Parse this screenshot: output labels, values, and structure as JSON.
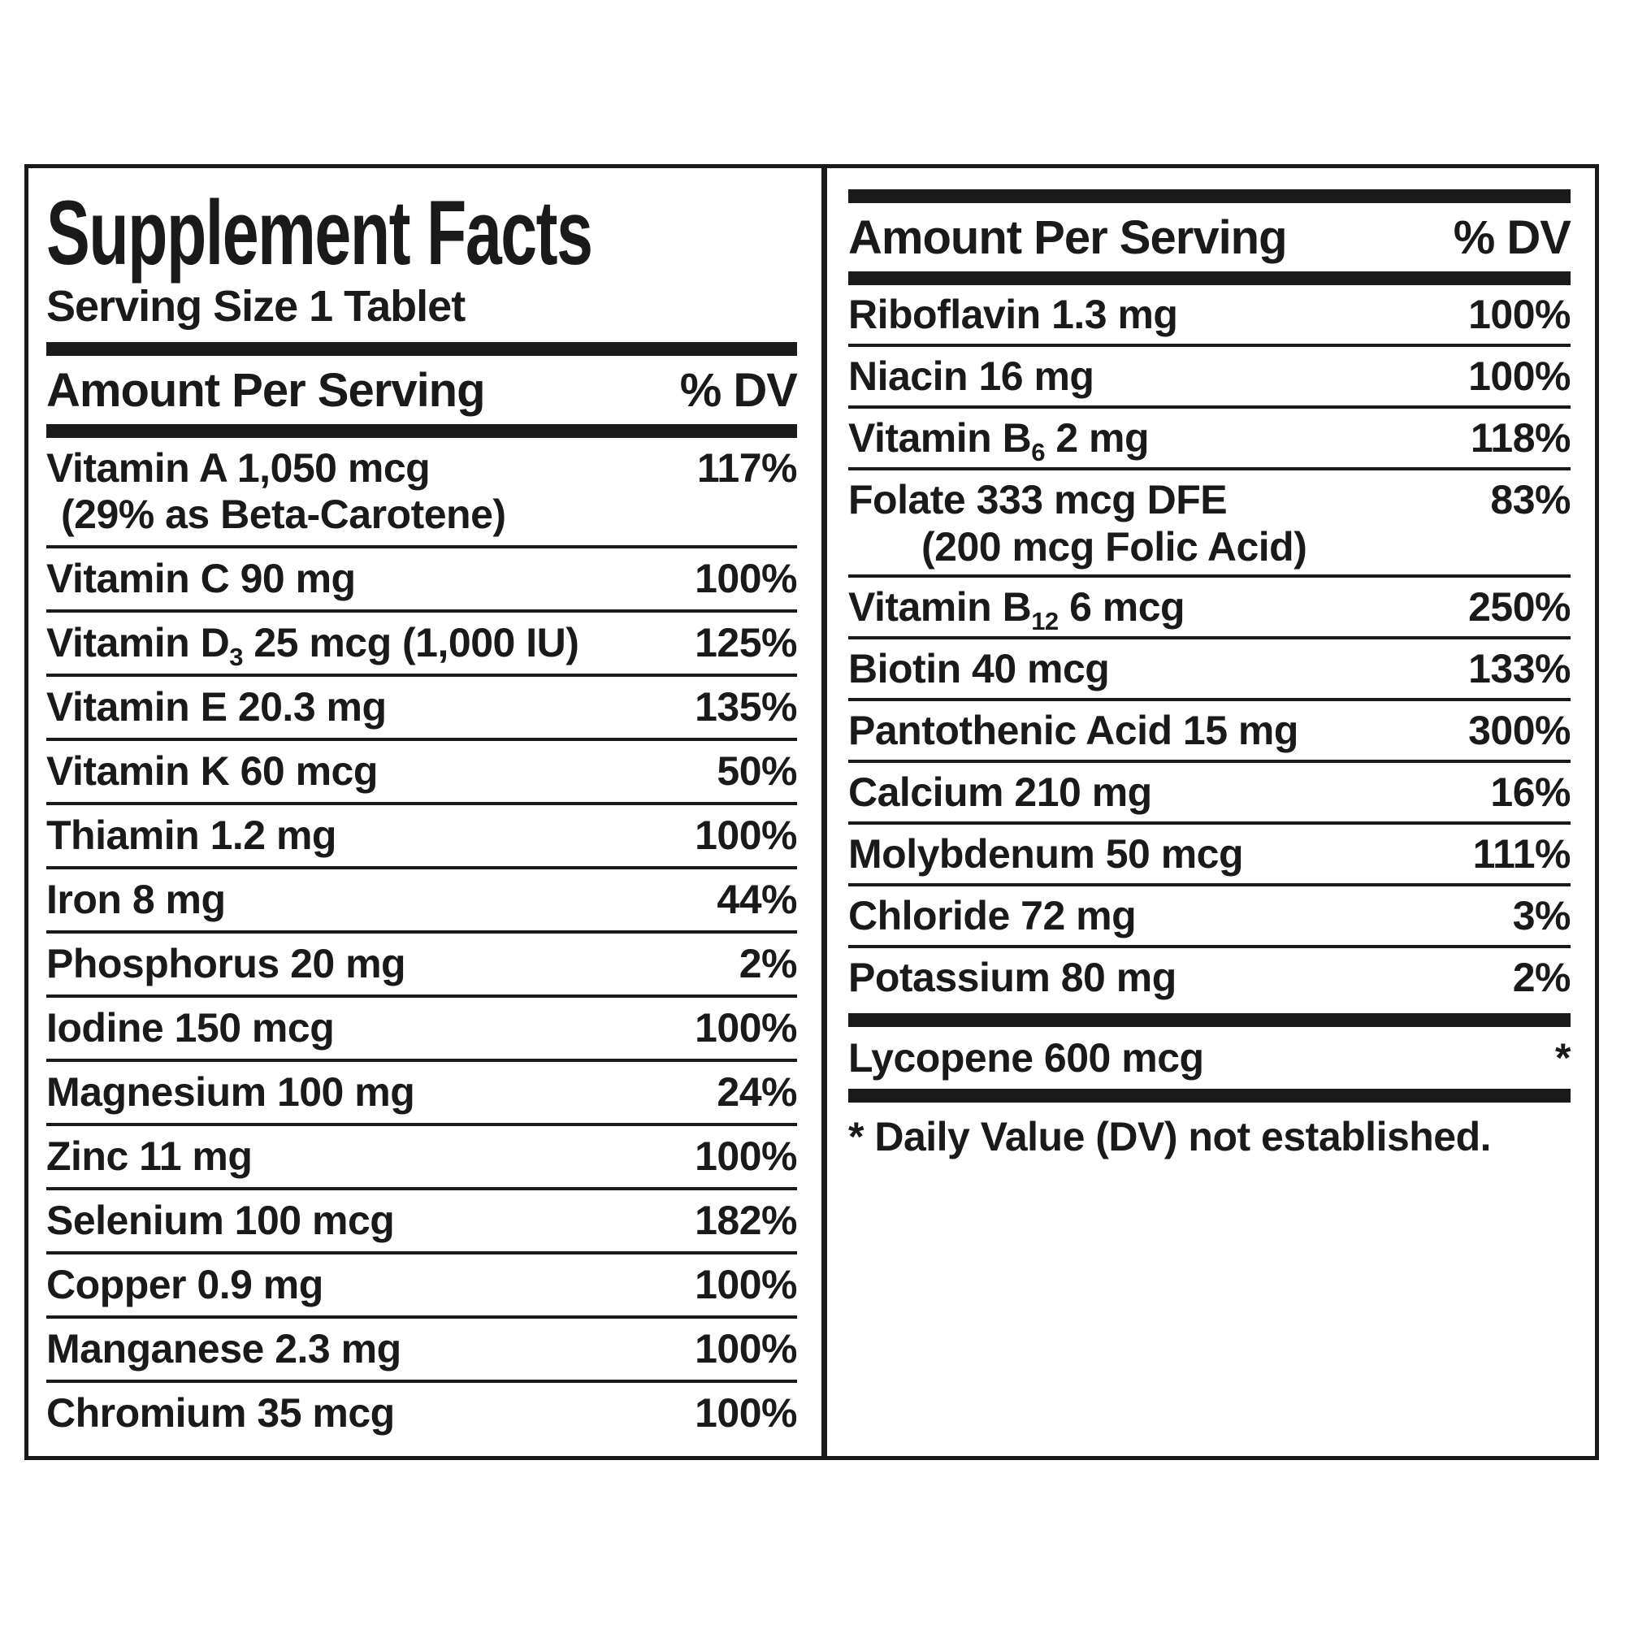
{
  "document": {
    "title": "Supplement Facts",
    "serving_size": "Serving Size 1 Tablet",
    "footnote": "* Daily Value (DV) not established."
  },
  "header": {
    "amount": "Amount Per Serving",
    "dv": "% DV"
  },
  "left_column": {
    "rows": [
      {
        "name": "Vitamin A 1,050 mcg",
        "note": "(29% as Beta-Carotene)",
        "dv": "117%"
      },
      {
        "name": "Vitamin C 90 mg",
        "dv": "100%"
      },
      {
        "pre": "Vitamin D",
        "sub": "3",
        "post": " 25 mcg (1,000 IU)",
        "dv": "125%"
      },
      {
        "name": "Vitamin E 20.3 mg",
        "dv": "135%"
      },
      {
        "name": "Vitamin K 60 mcg",
        "dv": "50%"
      },
      {
        "name": "Thiamin 1.2 mg",
        "dv": "100%"
      },
      {
        "name": "Iron 8 mg",
        "dv": "44%"
      },
      {
        "name": "Phosphorus 20 mg",
        "dv": "2%"
      },
      {
        "name": "Iodine 150 mcg",
        "dv": "100%"
      },
      {
        "name": "Magnesium 100 mg",
        "dv": "24%"
      },
      {
        "name": "Zinc 11 mg",
        "dv": "100%"
      },
      {
        "name": "Selenium 100 mcg",
        "dv": "182%"
      },
      {
        "name": "Copper 0.9 mg",
        "dv": "100%"
      },
      {
        "name": "Manganese 2.3 mg",
        "dv": "100%"
      },
      {
        "name": "Chromium 35 mcg",
        "dv": "100%"
      }
    ]
  },
  "right_column": {
    "rows": [
      {
        "name": "Riboflavin 1.3 mg",
        "dv": "100%"
      },
      {
        "name": "Niacin 16 mg",
        "dv": "100%"
      },
      {
        "pre": "Vitamin B",
        "sub": "6",
        "post": " 2 mg",
        "dv": "118%"
      },
      {
        "name": "Folate 333 mcg DFE",
        "note": "(200 mcg Folic Acid)",
        "dv": "83%"
      },
      {
        "pre": "Vitamin B",
        "sub": "12",
        "post": " 6 mcg",
        "dv": "250%"
      },
      {
        "name": "Biotin 40 mcg",
        "dv": "133%"
      },
      {
        "name": "Pantothenic Acid 15 mg",
        "dv": "300%"
      },
      {
        "name": "Calcium 210 mg",
        "dv": "16%"
      },
      {
        "name": "Molybdenum 50 mcg",
        "dv": "111%"
      },
      {
        "name": "Chloride 72 mg",
        "dv": "3%"
      },
      {
        "name": "Potassium 80 mg",
        "dv": "2%"
      }
    ],
    "extra_row": {
      "name": "Lycopene 600 mcg",
      "dv": "*"
    }
  },
  "colors": {
    "ink": "#1a1a1a",
    "background": "#ffffff"
  }
}
